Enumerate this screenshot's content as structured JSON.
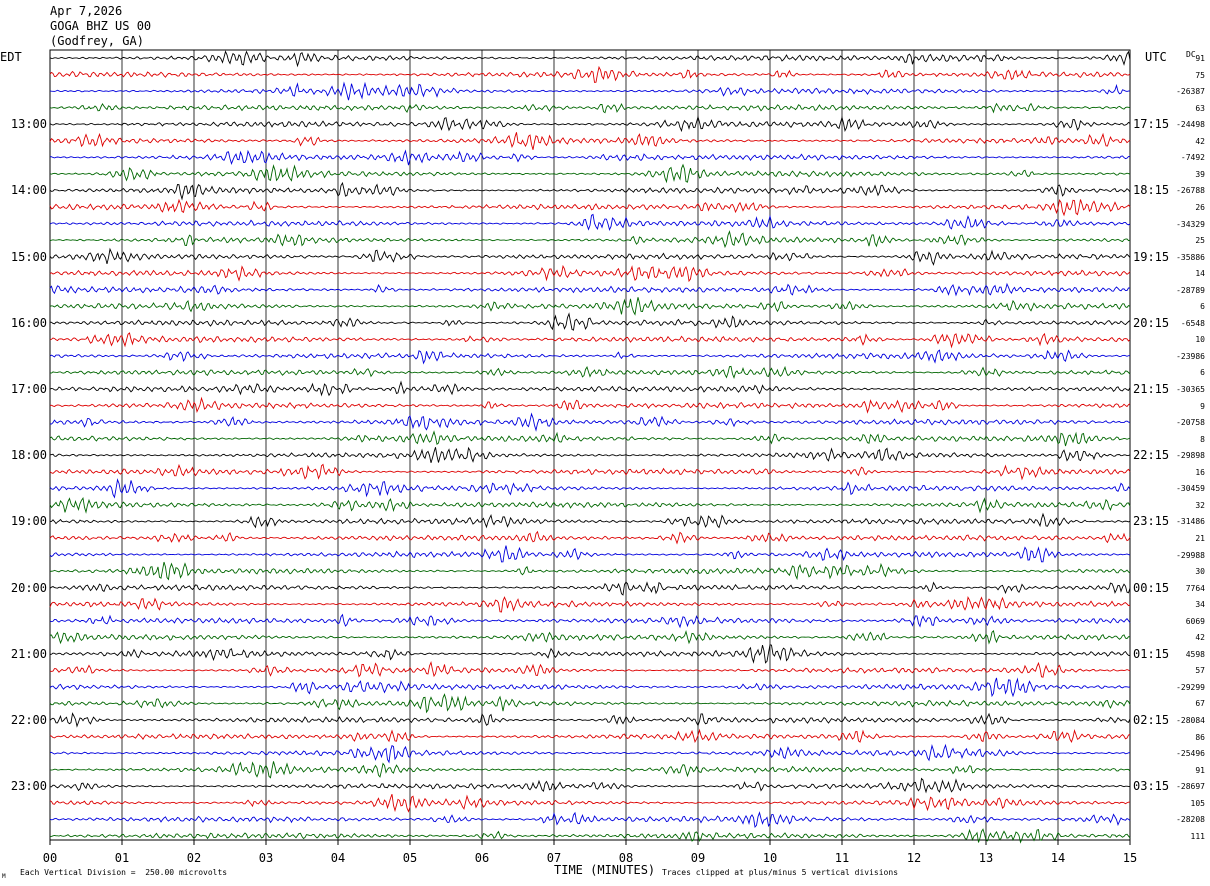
{
  "header": {
    "date": "Apr 7,2026",
    "station": "GOGA BHZ US 00",
    "location": "(Godfrey, GA)"
  },
  "left_zone": "EDT",
  "right_zone": "UTC",
  "dc_label": "DC",
  "footer": {
    "scale_note": "Each Vertical Division =  250.00 microvolts",
    "clip_note": "Traces clipped at plus/minus 5 vertical divisions",
    "corner_mark": "M"
  },
  "chart_data": {
    "type": "line",
    "title": "",
    "xlabel": "TIME (MINUTES)",
    "ylabel": "",
    "xlim": [
      0,
      15
    ],
    "x_ticks": [
      "00",
      "01",
      "02",
      "03",
      "04",
      "05",
      "06",
      "07",
      "08",
      "09",
      "10",
      "11",
      "12",
      "13",
      "14",
      "15"
    ],
    "grid": true,
    "trace_colors": [
      "#000000",
      "#dd0000",
      "#0000dd",
      "#006600"
    ],
    "left_hour_labels": [
      "13:00",
      "14:00",
      "15:00",
      "16:00",
      "17:00",
      "18:00",
      "19:00",
      "20:00",
      "21:00",
      "22:00",
      "23:00"
    ],
    "right_hour_labels": [
      "17:15",
      "18:15",
      "19:15",
      "20:15",
      "21:15",
      "22:15",
      "23:15",
      "00:15",
      "01:15",
      "02:15",
      "03:15"
    ],
    "dc_offsets": [
      "91",
      "75",
      "-26387",
      "63",
      "-24498",
      "42",
      "-7492",
      "39",
      "-26788",
      "26",
      "-34329",
      "25",
      "-35886",
      "14",
      "-28789",
      "6",
      "-6548",
      "10",
      "-23986",
      "6",
      "-30365",
      "9",
      "-20758",
      "8",
      "-29898",
      "16",
      "-30459",
      "32",
      "-31486",
      "21",
      "-29988",
      "30",
      "7764",
      "34",
      "6069",
      "42",
      "4598",
      "57",
      "-29299",
      "67",
      "-28084",
      "86",
      "-25496",
      "91",
      "-28697",
      "105",
      "-28208",
      "111"
    ],
    "trace_count": 48,
    "minutes_per_trace": 15
  }
}
